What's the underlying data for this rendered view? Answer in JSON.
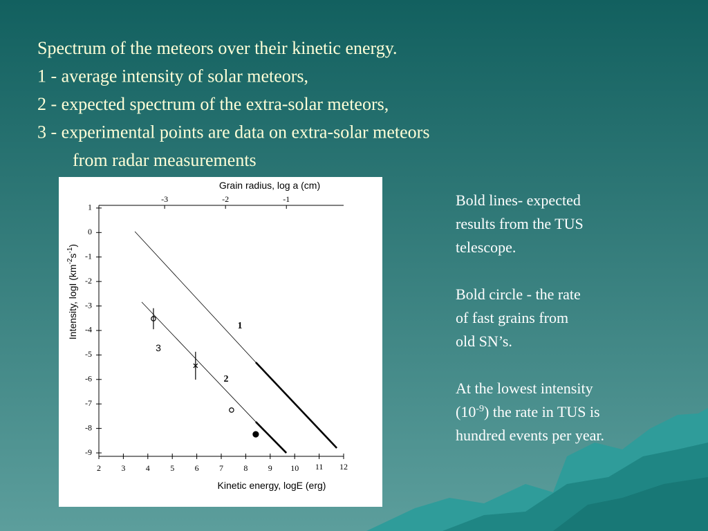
{
  "slide": {
    "title_lines": [
      "Spectrum of the meteors over their kinetic energy.",
      "1 - average intensity of solar meteors,",
      "2 - expected spectrum of the extra-solar meteors,",
      "3 - experimental points are data on extra-solar meteors",
      "from radar measurements"
    ],
    "side_paragraphs": [
      [
        "Bold lines- expected",
        "results from the TUS",
        "telescope."
      ],
      [
        "Bold circle - the rate",
        "of fast grains from",
        "old SN’s."
      ],
      [
        "At the lowest intensity",
        [
          "(10",
          "-9",
          ") the rate in TUS is"
        ],
        "hundred events per year."
      ]
    ]
  },
  "chart_data": {
    "type": "line",
    "xlabel": "Kinetic energy, logE (erg)",
    "ylabel": [
      "Intensity, logI (km",
      "-2",
      "s",
      "-1",
      ")"
    ],
    "x2label": "Grain radius, log a (cm)",
    "xlim": [
      2,
      12
    ],
    "xticks": [
      2,
      3,
      4,
      5,
      6,
      7,
      8,
      9,
      10,
      11,
      12
    ],
    "ylim": [
      -9.14,
      1.11
    ],
    "yticks": [
      1,
      0,
      -1,
      -2,
      -3,
      -4,
      -5,
      -6,
      -7,
      -8,
      -9
    ],
    "x2lim": [
      -4.08,
      -0.06
    ],
    "x2ticks": [
      -3,
      -2,
      -1
    ],
    "series": [
      {
        "name": "1",
        "color": "#000000",
        "x": [
          3.47,
          8.41,
          11.72
        ],
        "values": [
          0.04,
          -5.3,
          -8.8
        ],
        "line_widths": [
          0.8,
          2.6
        ]
      },
      {
        "name": "2",
        "color": "#000000",
        "x": [
          3.75,
          8.41,
          9.66
        ],
        "values": [
          -2.84,
          -7.73,
          -9
        ],
        "line_widths": [
          0.8,
          2.6
        ]
      },
      {
        "name": "3",
        "type": "scatter",
        "color": "#000000",
        "x": [
          4.23,
          5.95,
          7.42,
          8.41
        ],
        "values": [
          -3.52,
          -5.44,
          -7.25,
          -8.24
        ],
        "errors": [
          0.43,
          0.57,
          null,
          null
        ],
        "markers": [
          "open-circle",
          "cross",
          "open-circle",
          "filled-circle"
        ]
      }
    ]
  }
}
